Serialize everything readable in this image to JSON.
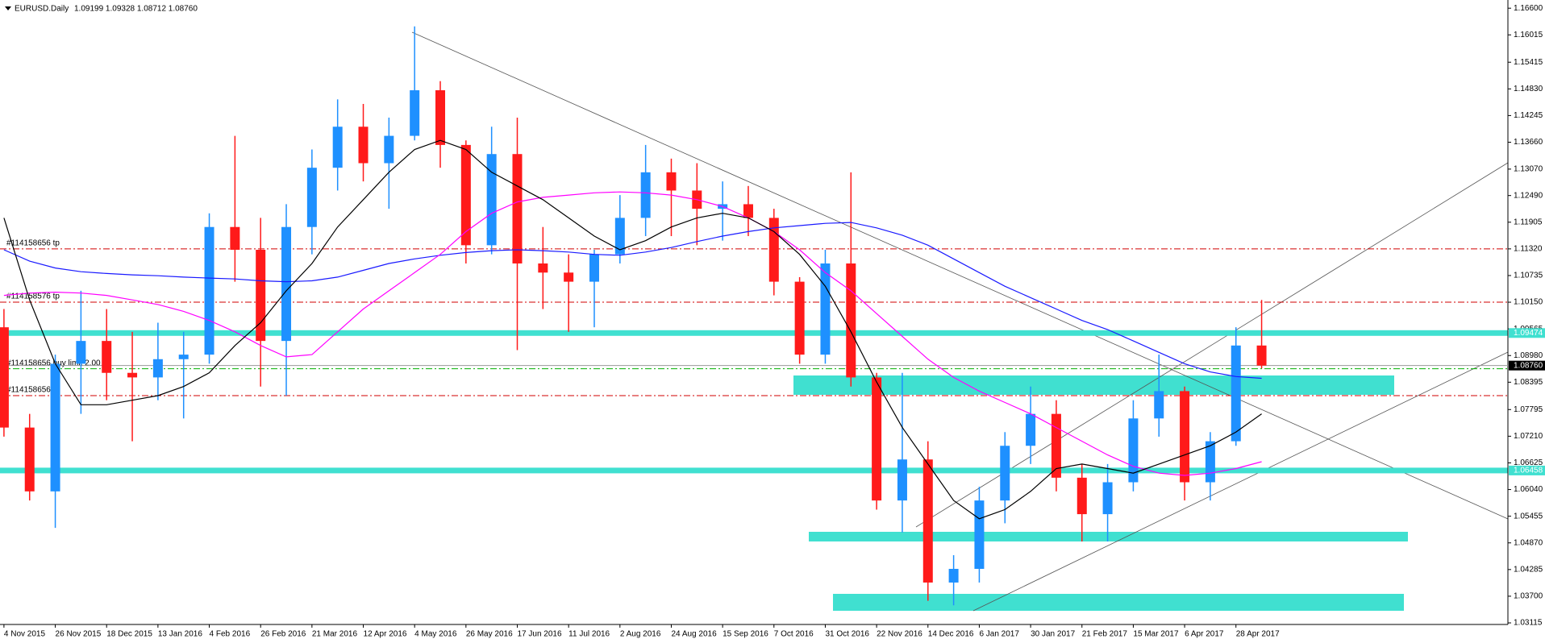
{
  "chart_data": {
    "type": "candlestick",
    "title": "EURUSD.Daily",
    "info": "1.09199 1.09328 1.08712 1.08760",
    "up_color": "#1e90ff",
    "down_color": "#ff1a1a",
    "categories": [
      "4 Nov 2015",
      null,
      "26 Nov 2015",
      null,
      "18 Dec 2015",
      null,
      "13 Jan 2016",
      null,
      "4 Feb 2016",
      null,
      "26 Feb 2016",
      null,
      "21 Mar 2016",
      null,
      "12 Apr 2016",
      null,
      "4 May 2016",
      null,
      "26 May 2016",
      null,
      "17 Jun 2016",
      null,
      "11 Jul 2016",
      null,
      "2 Aug 2016",
      null,
      "24 Aug 2016",
      null,
      "15 Sep 2016",
      null,
      "7 Oct 2016",
      null,
      "31 Oct 2016",
      null,
      "22 Nov 2016",
      null,
      "14 Dec 2016",
      null,
      "6 Jan 2017",
      null,
      "30 Jan 2017",
      null,
      "21 Feb 2017",
      null,
      "15 Mar 2017",
      null,
      "6 Apr 2017",
      null,
      "28 Apr 2017",
      null
    ],
    "open": [
      1.096,
      1.074,
      1.06,
      1.088,
      1.093,
      1.086,
      1.085,
      1.089,
      1.09,
      1.118,
      1.113,
      1.093,
      1.118,
      1.131,
      1.14,
      1.132,
      1.138,
      1.148,
      1.136,
      1.114,
      1.134,
      1.11,
      1.108,
      1.106,
      1.112,
      1.12,
      1.13,
      1.126,
      1.122,
      1.123,
      1.12,
      1.106,
      1.09,
      1.11,
      1.085,
      1.058,
      1.067,
      1.04,
      1.043,
      1.058,
      1.07,
      1.077,
      1.063,
      1.055,
      1.062,
      1.076,
      1.082,
      1.062,
      1.071,
      1.092
    ],
    "high": [
      1.1,
      1.077,
      1.09,
      1.104,
      1.1,
      1.095,
      1.097,
      1.095,
      1.121,
      1.138,
      1.12,
      1.123,
      1.135,
      1.146,
      1.145,
      1.142,
      1.162,
      1.15,
      1.137,
      1.14,
      1.142,
      1.118,
      1.112,
      1.113,
      1.125,
      1.136,
      1.133,
      1.132,
      1.128,
      1.127,
      1.122,
      1.107,
      1.113,
      1.13,
      1.086,
      1.086,
      1.071,
      1.046,
      1.061,
      1.073,
      1.083,
      1.08,
      1.066,
      1.066,
      1.08,
      1.09,
      1.083,
      1.073,
      1.096,
      1.102
    ],
    "low": [
      1.072,
      1.058,
      1.052,
      1.077,
      1.08,
      1.071,
      1.08,
      1.076,
      1.088,
      1.106,
      1.083,
      1.081,
      1.112,
      1.126,
      1.128,
      1.122,
      1.137,
      1.131,
      1.11,
      1.112,
      1.091,
      1.1,
      1.095,
      1.096,
      1.11,
      1.116,
      1.116,
      1.114,
      1.115,
      1.116,
      1.103,
      1.088,
      1.088,
      1.083,
      1.056,
      1.051,
      1.036,
      1.035,
      1.04,
      1.053,
      1.066,
      1.06,
      1.049,
      1.049,
      1.06,
      1.072,
      1.058,
      1.058,
      1.07,
      1.087
    ],
    "close": [
      1.074,
      1.06,
      1.088,
      1.093,
      1.086,
      1.085,
      1.089,
      1.09,
      1.118,
      1.113,
      1.093,
      1.118,
      1.131,
      1.14,
      1.132,
      1.138,
      1.148,
      1.136,
      1.114,
      1.134,
      1.11,
      1.108,
      1.106,
      1.112,
      1.12,
      1.13,
      1.126,
      1.122,
      1.123,
      1.12,
      1.106,
      1.09,
      1.11,
      1.085,
      1.058,
      1.067,
      1.04,
      1.043,
      1.058,
      1.07,
      1.077,
      1.063,
      1.055,
      1.062,
      1.076,
      1.082,
      1.062,
      1.071,
      1.092,
      1.0876
    ],
    "overlays": [
      {
        "color": "#1a1aff",
        "values": [
          1.113,
          1.1105,
          1.109,
          1.1082,
          1.1078,
          1.1075,
          1.1073,
          1.107,
          1.1068,
          1.1066,
          1.1062,
          1.106,
          1.1062,
          1.107,
          1.1085,
          1.11,
          1.111,
          1.1118,
          1.1124,
          1.1128,
          1.113,
          1.1128,
          1.1125,
          1.112,
          1.1118,
          1.1125,
          1.1135,
          1.1148,
          1.116,
          1.117,
          1.1178,
          1.1183,
          1.1188,
          1.119,
          1.1178,
          1.1162,
          1.114,
          1.111,
          1.108,
          1.105,
          1.1025,
          1.1,
          1.0975,
          1.0955,
          1.093,
          1.0905,
          1.088,
          1.0862,
          1.0852,
          1.0848
        ]
      },
      {
        "color": "#ff00ff",
        "values": [
          1.103,
          1.1035,
          1.1037,
          1.1035,
          1.103,
          1.102,
          1.101,
          1.0995,
          1.0975,
          1.095,
          1.092,
          1.0895,
          1.09,
          1.095,
          1.1,
          1.104,
          1.108,
          1.112,
          1.117,
          1.121,
          1.1235,
          1.1245,
          1.125,
          1.1255,
          1.1257,
          1.1255,
          1.125,
          1.124,
          1.1225,
          1.12,
          1.117,
          1.113,
          1.108,
          1.104,
          1.099,
          1.094,
          1.089,
          1.085,
          1.082,
          1.0795,
          1.077,
          1.074,
          1.071,
          1.068,
          1.0655,
          1.064,
          1.0635,
          1.064,
          1.065,
          1.0665
        ]
      },
      {
        "color": "#000000",
        "values": [
          1.12,
          1.102,
          1.088,
          1.079,
          1.079,
          1.08,
          1.081,
          1.083,
          1.086,
          1.092,
          1.097,
          1.104,
          1.11,
          1.118,
          1.124,
          1.13,
          1.135,
          1.137,
          1.135,
          1.13,
          1.127,
          1.124,
          1.12,
          1.116,
          1.113,
          1.115,
          1.118,
          1.12,
          1.121,
          1.12,
          1.117,
          1.112,
          1.105,
          1.095,
          1.084,
          1.074,
          1.066,
          1.058,
          1.054,
          1.056,
          1.06,
          1.065,
          1.066,
          1.065,
          1.064,
          1.066,
          1.068,
          1.07,
          1.073,
          1.077
        ]
      }
    ],
    "ylim": [
      1.0308,
      1.1678
    ],
    "yticks": [
      {
        "value": 1.166,
        "label": "1.16600"
      },
      {
        "value": 1.16015,
        "label": "1.16015"
      },
      {
        "value": 1.15415,
        "label": "1.15415"
      },
      {
        "value": 1.1483,
        "label": "1.14830"
      },
      {
        "value": 1.14245,
        "label": "1.14245"
      },
      {
        "value": 1.1366,
        "label": "1.13660"
      },
      {
        "value": 1.1307,
        "label": "1.13070"
      },
      {
        "value": 1.1249,
        "label": "1.12490"
      },
      {
        "value": 1.11905,
        "label": "1.11905"
      },
      {
        "value": 1.1132,
        "label": "1.11320"
      },
      {
        "value": 1.10735,
        "label": "1.10735"
      },
      {
        "value": 1.1015,
        "label": "1.10150"
      },
      {
        "value": 1.09565,
        "label": "1.09565"
      },
      {
        "value": 1.0898,
        "label": "1.08980"
      },
      {
        "value": 1.08395,
        "label": "1.08395"
      },
      {
        "value": 1.07795,
        "label": "1.07795"
      },
      {
        "value": 1.0721,
        "label": "1.07210"
      },
      {
        "value": 1.06625,
        "label": "1.06625"
      },
      {
        "value": 1.0604,
        "label": "1.06040"
      },
      {
        "value": 1.05455,
        "label": "1.05455"
      },
      {
        "value": 1.0487,
        "label": "1.04870"
      },
      {
        "value": 1.04285,
        "label": "1.04285"
      },
      {
        "value": 1.037,
        "label": "1.03700"
      },
      {
        "value": 1.03115,
        "label": "1.03115"
      }
    ],
    "orders": [
      {
        "label": "#114158656 tp",
        "value": 1.1132,
        "color": "#d00000"
      },
      {
        "label": "#114158576 tp",
        "value": 1.1015,
        "color": "#d00000"
      },
      {
        "label": "#114158656 buy limit 2.00",
        "value": 1.0869,
        "color": "#00b000"
      },
      {
        "label": "#114158656 sl",
        "value": 1.081,
        "color": "#d00000"
      }
    ],
    "levels": [
      {
        "value": 1.09474,
        "label": "1.09474"
      },
      {
        "value": 1.06458,
        "label": "1.06458"
      }
    ],
    "level_color": "#40e0d0",
    "price": {
      "value": 1.0876,
      "label": "1.08760"
    }
  }
}
